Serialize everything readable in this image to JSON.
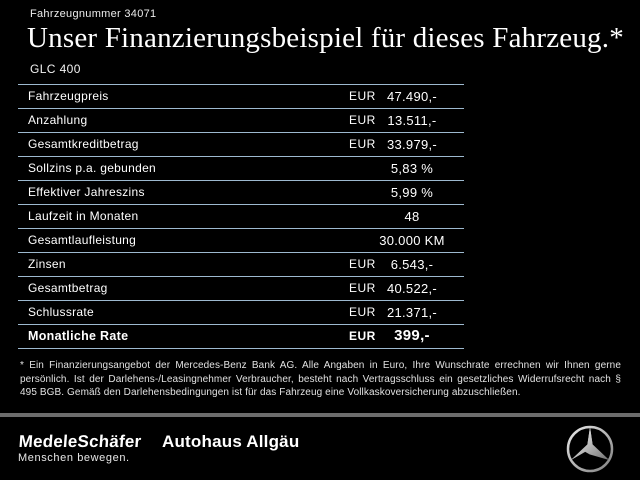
{
  "header": {
    "vehicle_number": "Fahrzeugnummer 34071",
    "title": "Unser Finanzierungsbeispiel für dieses Fahrzeug.*",
    "model": "GLC 400"
  },
  "table": {
    "rows": [
      {
        "label": "Fahrzeugpreis",
        "currency": "EUR",
        "value": "47.490,-",
        "bold": false
      },
      {
        "label": "Anzahlung",
        "currency": "EUR",
        "value": "13.511,-",
        "bold": false
      },
      {
        "label": "Gesamtkreditbetrag",
        "currency": "EUR",
        "value": "33.979,-",
        "bold": false
      },
      {
        "label": "Sollzins p.a. gebunden",
        "currency": "",
        "value": "5,83 %",
        "bold": false
      },
      {
        "label": "Effektiver Jahreszins",
        "currency": "",
        "value": "5,99 %",
        "bold": false
      },
      {
        "label": "Laufzeit in Monaten",
        "currency": "",
        "value": "48",
        "bold": false
      },
      {
        "label": "Gesamtlaufleistung",
        "currency": "",
        "value": "30.000 KM",
        "bold": false
      },
      {
        "label": "Zinsen",
        "currency": "EUR",
        "value": "6.543,-",
        "bold": false
      },
      {
        "label": "Gesamtbetrag",
        "currency": "EUR",
        "value": "40.522,-",
        "bold": false
      },
      {
        "label": "Schlussrate",
        "currency": "EUR",
        "value": "21.371,-",
        "bold": false
      },
      {
        "label": "Monatliche Rate",
        "currency": "EUR",
        "value": "399,-",
        "bold": true
      }
    ]
  },
  "footnote": "* Ein Finanzierungsangebot der Mercedes-Benz Bank AG. Alle Angaben in Euro, Ihre Wunschrate errechnen wir Ihnen gerne persönlich. Ist der Darlehens-/Leasingnehmer Verbraucher, besteht nach Vertragsschluss ein gesetzliches Widerrufsrecht nach § 495 BGB. Gemäß den Darlehensbedingungen ist für das Fahrzeug eine Vollkaskoversicherung abzuschließen.",
  "footer": {
    "dealer_primary": "MedeleSchäfer",
    "dealer_tagline": "Menschen bewegen.",
    "dealer_secondary": "Autohaus Allgäu",
    "brand_icon": "mercedes-star-icon"
  },
  "colors": {
    "background": "#000000",
    "text": "#ffffff",
    "table_line": "#9db9cf",
    "footer_bar": "#6c6c6c",
    "star_light": "#f2f2f2",
    "star_dark": "#7a7a7a"
  }
}
